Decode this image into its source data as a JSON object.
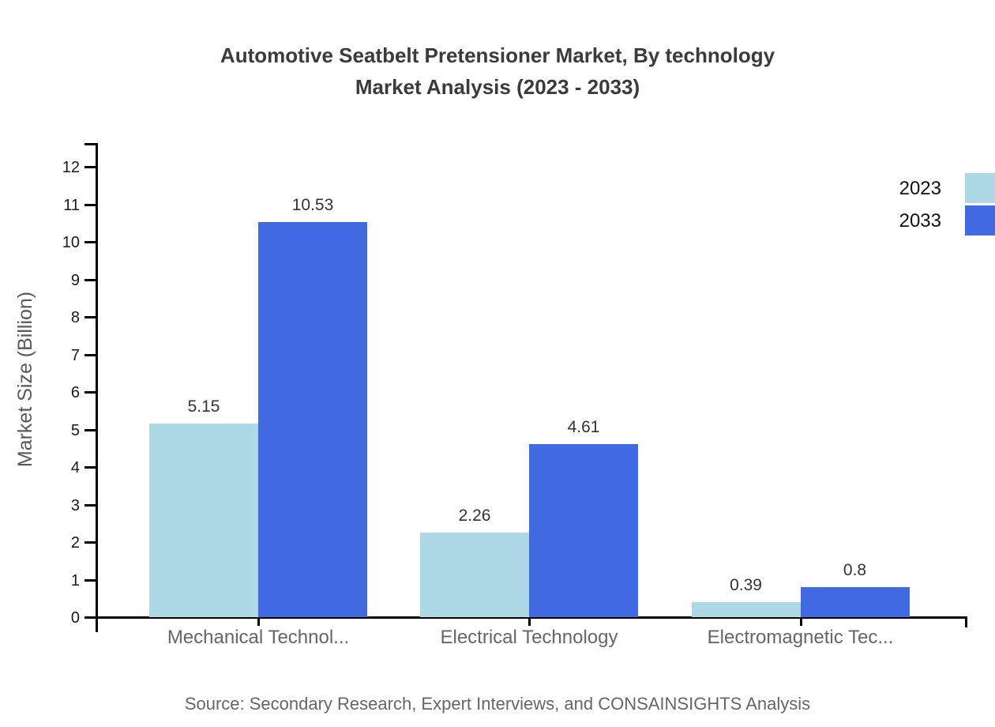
{
  "chart_data": {
    "type": "bar",
    "title_line1": "Automotive Seatbelt Pretensioner Market, By technology",
    "title_line2": "Market Analysis (2023 - 2033)",
    "ylabel": "Market Size (Billion)",
    "xlabel": "",
    "categories": [
      "Mechanical Technol...",
      "Electrical Technology",
      "Electromagnetic Tec..."
    ],
    "series": [
      {
        "name": "2023",
        "color": "#ADD8E6",
        "values": [
          5.15,
          2.26,
          0.39
        ],
        "labels": [
          "5.15",
          "2.26",
          "0.39"
        ]
      },
      {
        "name": "2033",
        "color": "#4169E1",
        "values": [
          10.53,
          4.61,
          0.8
        ],
        "labels": [
          "10.53",
          "4.61",
          "0.8"
        ]
      }
    ],
    "y_ticks": [
      0,
      1,
      2,
      3,
      4,
      5,
      6,
      7,
      8,
      9,
      10,
      11,
      12
    ],
    "ylim": [
      0,
      12.6
    ],
    "grid": false,
    "legend_position": "top-right"
  },
  "source_text": "Source: Secondary Research, Expert Interviews, and CONSAINSIGHTS Analysis",
  "colors": {
    "series_2023": "#ADD8E6",
    "series_2033": "#4169E1",
    "axis": "#000000",
    "title_text": "#3b3b3b",
    "tick_label_text": "#1a1a1a",
    "category_label_text": "#666666",
    "value_label_text": "#333333",
    "source_text": "#666666"
  }
}
